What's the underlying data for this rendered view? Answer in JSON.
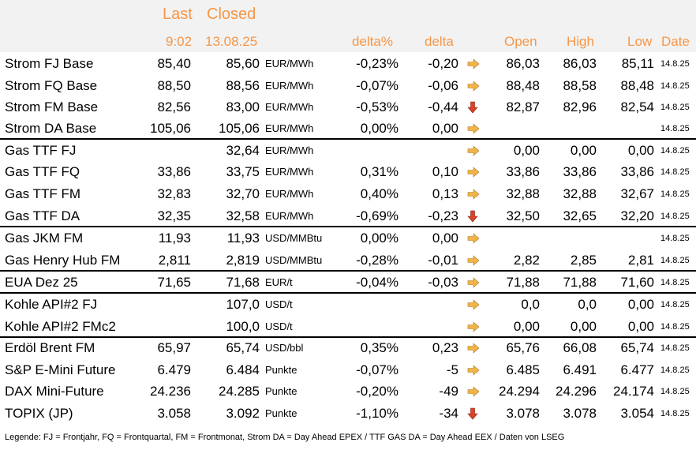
{
  "header": {
    "last": "Last",
    "closed": "Closed",
    "last_time": "9:02",
    "closed_date": "13.08.25",
    "col_delta_pct": "delta%",
    "col_delta": "delta",
    "col_open": "Open",
    "col_high": "High",
    "col_low": "Low",
    "col_date": "Date"
  },
  "colors": {
    "accent": "#f79646",
    "header_bg": "#f2f2f2",
    "arrow_side": "#f0b44a",
    "arrow_down": "#d9432a"
  },
  "rows": [
    {
      "name": "Strom FJ Base",
      "last": "85,40",
      "closed": "85,60",
      "unit": "EUR/MWh",
      "dpct": "-0,23%",
      "delta": "-0,20",
      "trend": "side",
      "open": "86,03",
      "high": "86,03",
      "low": "85,11",
      "date": "14.8.25"
    },
    {
      "name": "Strom FQ Base",
      "last": "88,50",
      "closed": "88,56",
      "unit": "EUR/MWh",
      "dpct": "-0,07%",
      "delta": "-0,06",
      "trend": "side",
      "open": "88,48",
      "high": "88,58",
      "low": "88,48",
      "date": "14.8.25"
    },
    {
      "name": "Strom FM Base",
      "last": "82,56",
      "closed": "83,00",
      "unit": "EUR/MWh",
      "dpct": "-0,53%",
      "delta": "-0,44",
      "trend": "down",
      "open": "82,87",
      "high": "82,96",
      "low": "82,54",
      "date": "14.8.25"
    },
    {
      "name": "Strom DA Base",
      "last": "105,06",
      "closed": "105,06",
      "unit": "EUR/MWh",
      "dpct": "0,00%",
      "delta": "0,00",
      "trend": "side",
      "open": "",
      "high": "",
      "low": "",
      "date": "14.8.25"
    },
    {
      "name": "Gas TTF FJ",
      "last": "",
      "closed": "32,64",
      "unit": "EUR/MWh",
      "dpct": "",
      "delta": "",
      "trend": "side",
      "open": "0,00",
      "high": "0,00",
      "low": "0,00",
      "date": "14.8.25"
    },
    {
      "name": "Gas TTF FQ",
      "last": "33,86",
      "closed": "33,75",
      "unit": "EUR/MWh",
      "dpct": "0,31%",
      "delta": "0,10",
      "trend": "side",
      "open": "33,86",
      "high": "33,86",
      "low": "33,86",
      "date": "14.8.25"
    },
    {
      "name": "Gas TTF FM",
      "last": "32,83",
      "closed": "32,70",
      "unit": "EUR/MWh",
      "dpct": "0,40%",
      "delta": "0,13",
      "trend": "side",
      "open": "32,88",
      "high": "32,88",
      "low": "32,67",
      "date": "14.8.25"
    },
    {
      "name": "Gas TTF DA",
      "last": "32,35",
      "closed": "32,58",
      "unit": "EUR/MWh",
      "dpct": "-0,69%",
      "delta": "-0,23",
      "trend": "down",
      "open": "32,50",
      "high": "32,65",
      "low": "32,20",
      "date": "14.8.25"
    },
    {
      "name": "Gas JKM FM",
      "last": "11,93",
      "closed": "11,93",
      "unit": "USD/MMBtu",
      "dpct": "0,00%",
      "delta": "0,00",
      "trend": "side",
      "open": "",
      "high": "",
      "low": "",
      "date": "14.8.25"
    },
    {
      "name": "Gas Henry Hub FM",
      "last": "2,811",
      "closed": "2,819",
      "unit": "USD/MMBtu",
      "dpct": "-0,28%",
      "delta": "-0,01",
      "trend": "side",
      "open": "2,82",
      "high": "2,85",
      "low": "2,81",
      "date": "14.8.25"
    },
    {
      "name": "EUA Dez 25",
      "last": "71,65",
      "closed": "71,68",
      "unit": "EUR/t",
      "dpct": "-0,04%",
      "delta": "-0,03",
      "trend": "side",
      "open": "71,88",
      "high": "71,88",
      "low": "71,60",
      "date": "14.8.25"
    },
    {
      "name": "Kohle API#2 FJ",
      "last": "",
      "closed": "107,0",
      "unit": "USD/t",
      "dpct": "",
      "delta": "",
      "trend": "side",
      "open": "0,0",
      "high": "0,0",
      "low": "0,00",
      "date": "14.8.25"
    },
    {
      "name": "Kohle API#2 FMc2",
      "last": "",
      "closed": "100,0",
      "unit": "USD/t",
      "dpct": "",
      "delta": "",
      "trend": "side",
      "open": "0,00",
      "high": "0,00",
      "low": "0,00",
      "date": "14.8.25"
    },
    {
      "name": "Erdöl Brent FM",
      "last": "65,97",
      "closed": "65,74",
      "unit": "USD/bbl",
      "dpct": "0,35%",
      "delta": "0,23",
      "trend": "side",
      "open": "65,76",
      "high": "66,08",
      "low": "65,74",
      "date": "14.8.25"
    },
    {
      "name": "S&P E-Mini Future",
      "last": "6.479",
      "closed": "6.484",
      "unit": "Punkte",
      "dpct": "-0,07%",
      "delta": "-5",
      "trend": "side",
      "open": "6.485",
      "high": "6.491",
      "low": "6.477",
      "date": "14.8.25"
    },
    {
      "name": "DAX Mini-Future",
      "last": "24.236",
      "closed": "24.285",
      "unit": "Punkte",
      "dpct": "-0,20%",
      "delta": "-49",
      "trend": "side",
      "open": "24.294",
      "high": "24.296",
      "low": "24.174",
      "date": "14.8.25"
    },
    {
      "name": "TOPIX (JP)",
      "last": "3.058",
      "closed": "3.092",
      "unit": "Punkte",
      "dpct": "-1,10%",
      "delta": "-34",
      "trend": "down",
      "open": "3.078",
      "high": "3.078",
      "low": "3.054",
      "date": "14.8.25"
    }
  ],
  "legend": "Legende: FJ = Frontjahr, FQ = Frontquartal, FM = Frontmonat, Strom DA = Day Ahead EPEX / TTF GAS DA = Day Ahead EEX / Daten von LSEG"
}
